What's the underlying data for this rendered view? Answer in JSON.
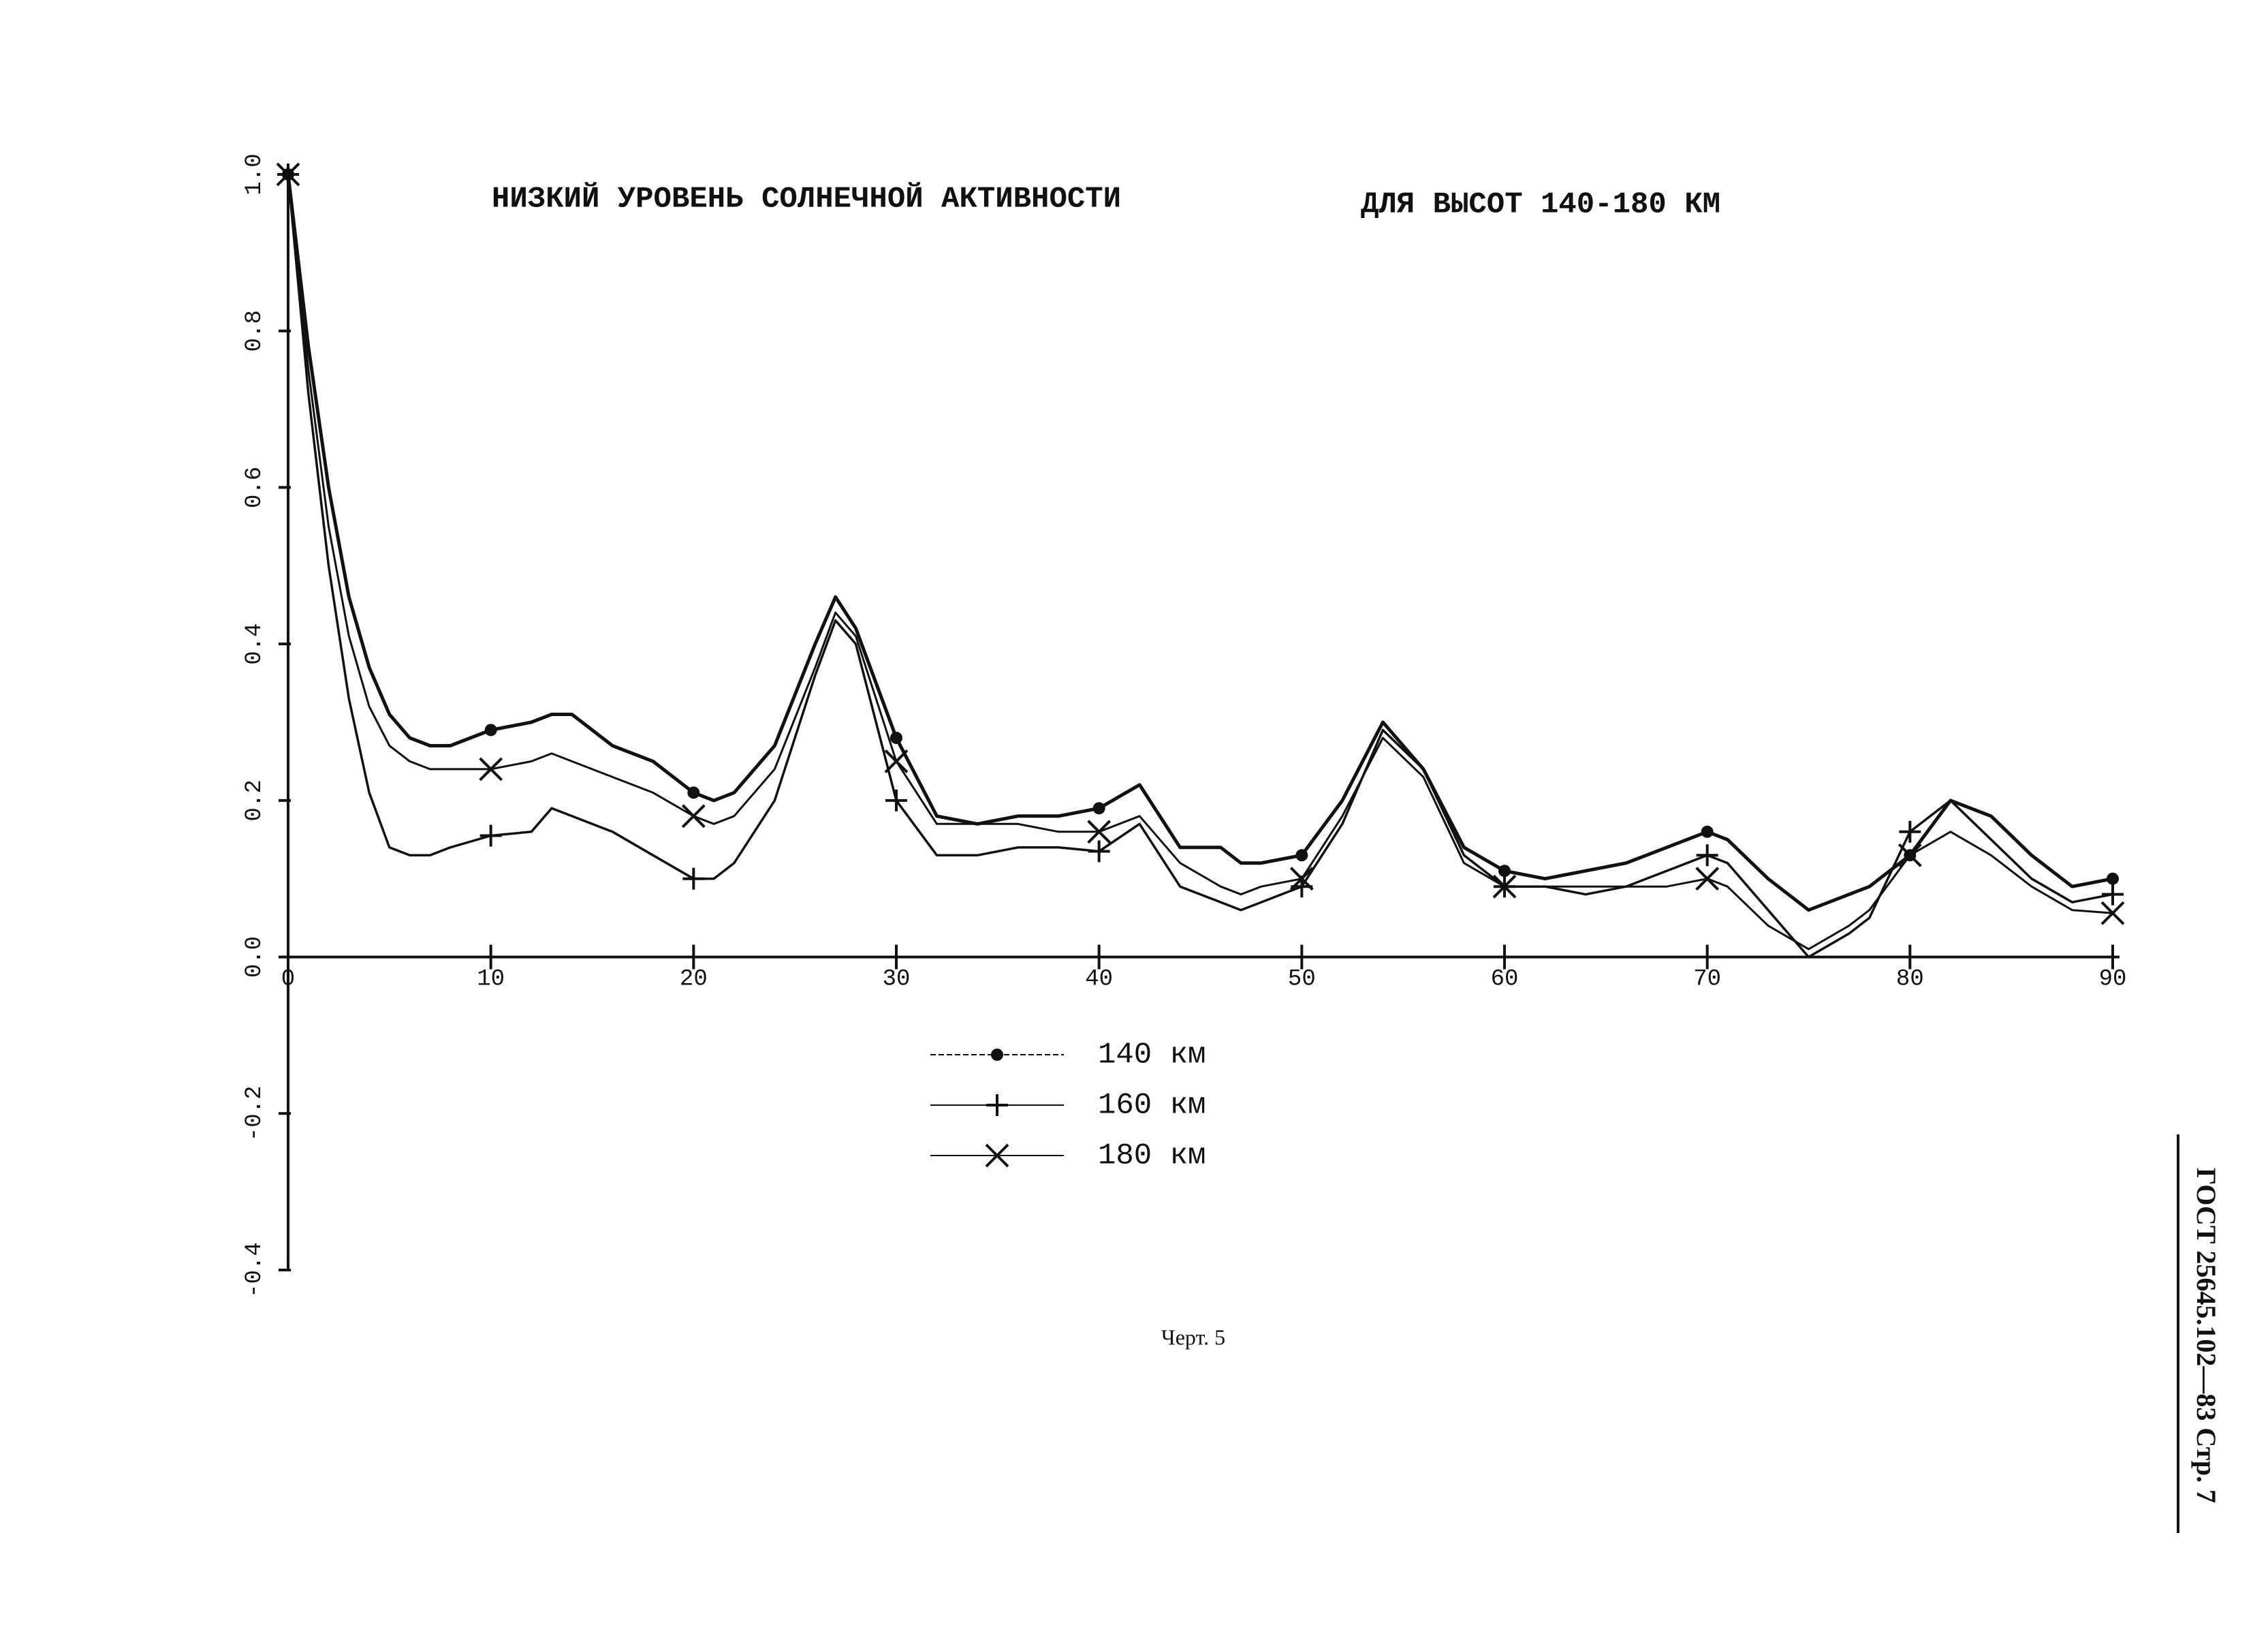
{
  "chart_data": {
    "type": "line",
    "title": "НИЗКИЙ УРОВЕНЬ СОЛНЕЧНОЙ АКТИВНОСТИ",
    "subtitle": "ДЛЯ ВЫСОТ 140-180 КМ",
    "caption": "Черт. 5",
    "side_text": "ГОСТ 25645.102—83 Стр. 7",
    "x": [
      0,
      1,
      2,
      3,
      4,
      5,
      6,
      7,
      8,
      10,
      12,
      13,
      14,
      16,
      18,
      20,
      21,
      22,
      24,
      26,
      27,
      28,
      30,
      32,
      34,
      36,
      38,
      40,
      42,
      44,
      46,
      47,
      48,
      50,
      52,
      54,
      56,
      58,
      60,
      62,
      64,
      66,
      68,
      70,
      71,
      73,
      75,
      77,
      78,
      80,
      82,
      84,
      86,
      88,
      90
    ],
    "series": [
      {
        "name": "140 км",
        "color": "#111111",
        "values": [
          1.0,
          0.78,
          0.6,
          0.46,
          0.37,
          0.31,
          0.28,
          0.27,
          0.27,
          0.29,
          0.3,
          0.31,
          0.31,
          0.27,
          0.25,
          0.21,
          0.2,
          0.21,
          0.27,
          0.4,
          0.46,
          0.42,
          0.28,
          0.18,
          0.17,
          0.18,
          0.18,
          0.19,
          0.22,
          0.14,
          0.14,
          0.12,
          0.12,
          0.13,
          0.2,
          0.3,
          0.24,
          0.14,
          0.11,
          0.1,
          0.11,
          0.12,
          0.14,
          0.16,
          0.15,
          0.1,
          0.06,
          0.08,
          0.09,
          0.13,
          0.2,
          0.18,
          0.13,
          0.09,
          0.1
        ]
      },
      {
        "name": "160 км",
        "color": "#111111",
        "values": [
          1.0,
          0.72,
          0.5,
          0.33,
          0.21,
          0.14,
          0.13,
          0.13,
          0.14,
          0.155,
          0.16,
          0.19,
          0.18,
          0.16,
          0.13,
          0.1,
          0.1,
          0.12,
          0.2,
          0.36,
          0.43,
          0.4,
          0.2,
          0.13,
          0.13,
          0.14,
          0.14,
          0.135,
          0.17,
          0.09,
          0.07,
          0.06,
          0.07,
          0.09,
          0.17,
          0.29,
          0.24,
          0.13,
          0.09,
          0.09,
          0.08,
          0.09,
          0.11,
          0.13,
          0.12,
          0.06,
          0.0,
          0.03,
          0.05,
          0.16,
          0.2,
          0.15,
          0.1,
          0.07,
          0.08
        ]
      },
      {
        "name": "180 км",
        "color": "#111111",
        "values": [
          1.0,
          0.75,
          0.55,
          0.41,
          0.32,
          0.27,
          0.25,
          0.24,
          0.24,
          0.24,
          0.25,
          0.26,
          0.25,
          0.23,
          0.21,
          0.18,
          0.17,
          0.18,
          0.24,
          0.37,
          0.44,
          0.41,
          0.25,
          0.17,
          0.17,
          0.17,
          0.16,
          0.16,
          0.18,
          0.12,
          0.09,
          0.08,
          0.09,
          0.1,
          0.18,
          0.28,
          0.23,
          0.12,
          0.09,
          0.09,
          0.09,
          0.09,
          0.09,
          0.1,
          0.09,
          0.04,
          0.01,
          0.04,
          0.06,
          0.13,
          0.16,
          0.13,
          0.09,
          0.06,
          0.056
        ]
      }
    ],
    "xlim": [
      0,
      90
    ],
    "xticks": [
      0,
      10,
      20,
      30,
      40,
      50,
      60,
      70,
      80,
      90
    ],
    "ylim": [
      -0.4,
      1.0
    ],
    "yticks": [
      {
        "value": -0.4,
        "label": "-0.4"
      },
      -0.2,
      {
        "value": 0,
        "label": "0.0"
      },
      0.2,
      0.4,
      0.6,
      0.8,
      {
        "value": 1,
        "label": "1.0"
      }
    ]
  }
}
